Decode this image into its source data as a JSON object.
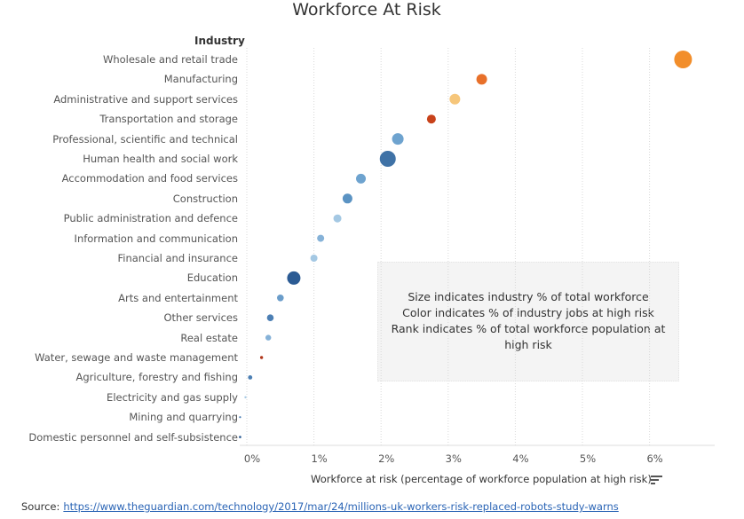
{
  "chart_data": {
    "type": "scatter",
    "title": "Workforce At Risk",
    "category_header": "Industry",
    "xlabel": "Workforce at risk (percentage of workforce population at high risk)",
    "xlim": [
      -0.1,
      6.9
    ],
    "x_ticks": [
      0,
      1,
      2,
      3,
      4,
      5,
      6
    ],
    "x_tick_labels": [
      "0%",
      "1%",
      "2%",
      "3%",
      "4%",
      "5%",
      "6%"
    ],
    "grid": "vertical dotted",
    "categories": [
      "Wholesale and retail trade",
      "Manufacturing",
      "Administrative and support services",
      "Transportation and storage",
      "Professional, scientific and technical",
      "Human health and social work",
      "Accommodation and food services",
      "Construction",
      "Public administration and defence",
      "Information and communication",
      "Financial and insurance",
      "Education",
      "Arts and entertainment",
      "Other services",
      "Real estate",
      "Water, sewage and waste management",
      "Agriculture, forestry and fishing",
      "Electricity and gas supply",
      "Mining and quarrying",
      "Domestic personnel and self-subsistence"
    ],
    "values": [
      6.5,
      3.5,
      3.1,
      2.75,
      2.25,
      2.1,
      1.7,
      1.5,
      1.35,
      1.1,
      1.0,
      0.7,
      0.5,
      0.35,
      0.32,
      0.22,
      0.05,
      -0.02,
      -0.1,
      -0.1
    ],
    "size_rank": [
      10,
      6,
      6,
      5,
      6.5,
      9,
      5.5,
      5.5,
      4.5,
      4,
      4,
      7.5,
      3.8,
      3.8,
      3.2,
      1.7,
      2.4,
      1.2,
      1.1,
      1.3
    ],
    "colors": [
      "#f28e2b",
      "#e8702a",
      "#f6c67a",
      "#c8421a",
      "#6ea3cf",
      "#3f72a6",
      "#6ea3cf",
      "#5b93c3",
      "#a4c8e3",
      "#86b2d8",
      "#a4c8e3",
      "#2b5b94",
      "#6b9dca",
      "#4c7fb4",
      "#86b2d8",
      "#b0361a",
      "#4c7fb4",
      "#a4c8e3",
      "#4c7fb4",
      "#2b5b94"
    ]
  },
  "annotation": {
    "lines": [
      "Size indicates industry % of total workforce",
      "Color indicates % of industry jobs at high risk",
      "Rank indicates % of total workforce population at",
      "high risk"
    ]
  },
  "source": {
    "label": "Source:",
    "url": "https://www.theguardian.com/technology/2017/mar/24/millions-uk-workers-risk-replaced-robots-study-warns"
  },
  "icons": {
    "sort": "sort-descending-icon"
  }
}
